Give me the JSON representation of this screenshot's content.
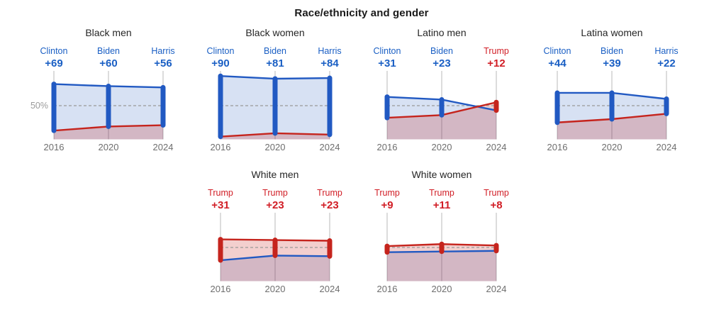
{
  "title": "Race/ethnicity and gender",
  "fifty_percent_label": "50%",
  "colors": {
    "dem": "#2159c2",
    "rep": "#c5241d",
    "dem_text": "#1a5fc4",
    "rep_text": "#d11e26",
    "dem_fill": "rgba(31,91,191,0.18)",
    "rep_fill": "rgba(201,37,31,0.22)",
    "gridline": "#cccccc",
    "dashed_line": "#999999",
    "year_text": "#6e6e6e",
    "fifty_text": "#9b9b9b",
    "title_text": "#262626"
  },
  "chart_data": [
    {
      "type": "area",
      "title": "Black men",
      "grid": {
        "row": 0,
        "col": 0
      },
      "show_fifty_label": true,
      "x": [
        "2016",
        "2020",
        "2024"
      ],
      "ylim": [
        0,
        100
      ],
      "reference_line": 50,
      "series": [
        {
          "name": "Democrat",
          "values": [
            82,
            79,
            77
          ]
        },
        {
          "name": "Republican",
          "values": [
            13,
            19,
            21
          ]
        }
      ],
      "annotations": [
        {
          "year": "2016",
          "candidate": "Clinton",
          "margin": "+69",
          "party": "dem"
        },
        {
          "year": "2020",
          "candidate": "Biden",
          "margin": "+60",
          "party": "dem"
        },
        {
          "year": "2024",
          "candidate": "Harris",
          "margin": "+56",
          "party": "dem"
        }
      ]
    },
    {
      "type": "area",
      "title": "Black women",
      "grid": {
        "row": 0,
        "col": 1
      },
      "show_fifty_label": false,
      "x": [
        "2016",
        "2020",
        "2024"
      ],
      "ylim": [
        0,
        100
      ],
      "reference_line": 50,
      "series": [
        {
          "name": "Democrat",
          "values": [
            94,
            90,
            91
          ]
        },
        {
          "name": "Republican",
          "values": [
            4,
            9,
            7
          ]
        }
      ],
      "annotations": [
        {
          "year": "2016",
          "candidate": "Clinton",
          "margin": "+90",
          "party": "dem"
        },
        {
          "year": "2020",
          "candidate": "Biden",
          "margin": "+81",
          "party": "dem"
        },
        {
          "year": "2024",
          "candidate": "Harris",
          "margin": "+84",
          "party": "dem"
        }
      ]
    },
    {
      "type": "area",
      "title": "Latino men",
      "grid": {
        "row": 0,
        "col": 2
      },
      "show_fifty_label": false,
      "x": [
        "2016",
        "2020",
        "2024"
      ],
      "ylim": [
        0,
        100
      ],
      "reference_line": 50,
      "series": [
        {
          "name": "Democrat",
          "values": [
            63,
            59,
            43
          ]
        },
        {
          "name": "Republican",
          "values": [
            32,
            36,
            55
          ]
        }
      ],
      "annotations": [
        {
          "year": "2016",
          "candidate": "Clinton",
          "margin": "+31",
          "party": "dem"
        },
        {
          "year": "2020",
          "candidate": "Biden",
          "margin": "+23",
          "party": "dem"
        },
        {
          "year": "2024",
          "candidate": "Trump",
          "margin": "+12",
          "party": "rep"
        }
      ]
    },
    {
      "type": "area",
      "title": "Latina women",
      "grid": {
        "row": 0,
        "col": 3
      },
      "show_fifty_label": false,
      "x": [
        "2016",
        "2020",
        "2024"
      ],
      "ylim": [
        0,
        100
      ],
      "reference_line": 50,
      "series": [
        {
          "name": "Democrat",
          "values": [
            69,
            69,
            60
          ]
        },
        {
          "name": "Republican",
          "values": [
            25,
            30,
            38
          ]
        }
      ],
      "annotations": [
        {
          "year": "2016",
          "candidate": "Clinton",
          "margin": "+44",
          "party": "dem"
        },
        {
          "year": "2020",
          "candidate": "Biden",
          "margin": "+39",
          "party": "dem"
        },
        {
          "year": "2024",
          "candidate": "Harris",
          "margin": "+22",
          "party": "dem"
        }
      ]
    },
    {
      "type": "area",
      "title": "White men",
      "grid": {
        "row": 1,
        "col": 1
      },
      "show_fifty_label": false,
      "x": [
        "2016",
        "2020",
        "2024"
      ],
      "ylim": [
        0,
        100
      ],
      "reference_line": 50,
      "series": [
        {
          "name": "Democrat",
          "values": [
            31,
            38,
            37
          ]
        },
        {
          "name": "Republican",
          "values": [
            62,
            61,
            60
          ]
        }
      ],
      "annotations": [
        {
          "year": "2016",
          "candidate": "Trump",
          "margin": "+31",
          "party": "rep"
        },
        {
          "year": "2020",
          "candidate": "Trump",
          "margin": "+23",
          "party": "rep"
        },
        {
          "year": "2024",
          "candidate": "Trump",
          "margin": "+23",
          "party": "rep"
        }
      ]
    },
    {
      "type": "area",
      "title": "White women",
      "grid": {
        "row": 1,
        "col": 2
      },
      "show_fifty_label": false,
      "x": [
        "2016",
        "2020",
        "2024"
      ],
      "ylim": [
        0,
        100
      ],
      "reference_line": 50,
      "series": [
        {
          "name": "Democrat",
          "values": [
            43,
            44,
            45
          ]
        },
        {
          "name": "Republican",
          "values": [
            52,
            55,
            53
          ]
        }
      ],
      "annotations": [
        {
          "year": "2016",
          "candidate": "Trump",
          "margin": "+9",
          "party": "rep"
        },
        {
          "year": "2020",
          "candidate": "Trump",
          "margin": "+11",
          "party": "rep"
        },
        {
          "year": "2024",
          "candidate": "Trump",
          "margin": "+8",
          "party": "rep"
        }
      ]
    }
  ]
}
